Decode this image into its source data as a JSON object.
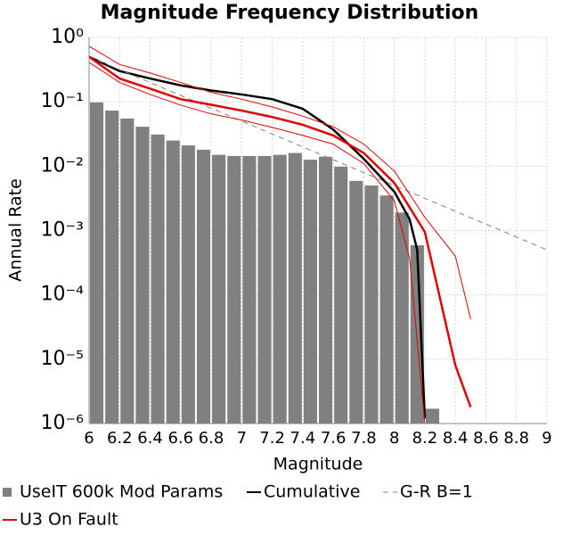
{
  "chart_data": {
    "type": "mixed",
    "title": "Magnitude Frequency Distribution",
    "x_label": "Magnitude",
    "y_label": "Annual Rate",
    "xlim": [
      6,
      9
    ],
    "xticks": [
      6,
      6.2,
      6.4,
      6.6,
      6.8,
      7,
      7.2,
      7.4,
      7.6,
      7.8,
      8,
      8.2,
      8.4,
      8.6,
      8.8,
      9
    ],
    "ylim": [
      1e-06,
      1
    ],
    "yscale": "log",
    "yticks": [
      {
        "value": 1e-06,
        "label": "10⁻⁶"
      },
      {
        "value": 1e-05,
        "label": "10⁻⁵"
      },
      {
        "value": 0.0001,
        "label": "10⁻⁴"
      },
      {
        "value": 0.001,
        "label": "10⁻³"
      },
      {
        "value": 0.01,
        "label": "10⁻²"
      },
      {
        "value": 0.1,
        "label": "10⁻¹"
      },
      {
        "value": 1,
        "label": "10⁰"
      }
    ],
    "grid": true,
    "series": [
      {
        "name": "UseIT 600k Mod Params",
        "type": "histogram",
        "color": "#808080",
        "bins": [
          6,
          6.1,
          6.2,
          6.3,
          6.4,
          6.5,
          6.6,
          6.7,
          6.8,
          6.9,
          7,
          7.1,
          7.2,
          7.3,
          7.4,
          7.5,
          7.6,
          7.7,
          7.8,
          7.9,
          8,
          8.1,
          8.2,
          8.3
        ],
        "values": [
          0.098,
          0.073,
          0.055,
          0.041,
          0.031,
          0.025,
          0.021,
          0.018,
          0.015,
          0.0144,
          0.0144,
          0.0144,
          0.015,
          0.016,
          0.0126,
          0.014,
          0.0098,
          0.0059,
          0.005,
          0.0035,
          0.0019,
          0.00059,
          1.7e-06
        ]
      },
      {
        "name": "Cumulative",
        "type": "line",
        "color": "#000000",
        "x": [
          6,
          6.2,
          6.4,
          6.6,
          6.8,
          7,
          7.2,
          7.4,
          7.6,
          7.8,
          8,
          8.1,
          8.15,
          8.2
        ],
        "values": [
          0.5,
          0.3,
          0.23,
          0.18,
          0.15,
          0.13,
          0.11,
          0.078,
          0.037,
          0.013,
          0.004,
          0.0015,
          0.0005,
          1.2e-06
        ]
      },
      {
        "name": "G-R B=1",
        "type": "line",
        "color": "#808080",
        "dash": true,
        "x": [
          6,
          9
        ],
        "values": [
          0.5,
          0.0005
        ]
      },
      {
        "name": "U3 On Fault",
        "type": "line",
        "color": "#e00000",
        "x": [
          6,
          6.2,
          6.4,
          6.6,
          6.8,
          7,
          7.2,
          7.4,
          7.6,
          7.8,
          8,
          8.2,
          8.4,
          8.5
        ],
        "values": [
          0.5,
          0.23,
          0.16,
          0.11,
          0.09,
          0.073,
          0.058,
          0.044,
          0.03,
          0.016,
          0.0055,
          0.00095,
          8e-06,
          1.8e-06
        ]
      },
      {
        "type": "line",
        "color": "#e00000",
        "thin": true,
        "x": [
          6,
          6.2,
          6.4,
          6.6,
          6.8,
          7,
          7.2,
          7.4,
          7.6,
          7.8,
          8,
          8.2,
          8.4,
          8.5
        ],
        "values": [
          0.73,
          0.38,
          0.28,
          0.2,
          0.14,
          0.11,
          0.083,
          0.06,
          0.041,
          0.022,
          0.0084,
          0.0016,
          0.0004,
          4.2e-05
        ]
      },
      {
        "type": "line",
        "color": "#e00000",
        "thin": true,
        "x": [
          6,
          6.2,
          6.4,
          6.6,
          6.8,
          7,
          7.2,
          7.4,
          7.6,
          7.8,
          8,
          8.1,
          8.2
        ],
        "values": [
          0.41,
          0.2,
          0.13,
          0.089,
          0.065,
          0.052,
          0.04,
          0.03,
          0.022,
          0.011,
          0.0029,
          0.00037,
          1e-06
        ]
      }
    ]
  }
}
